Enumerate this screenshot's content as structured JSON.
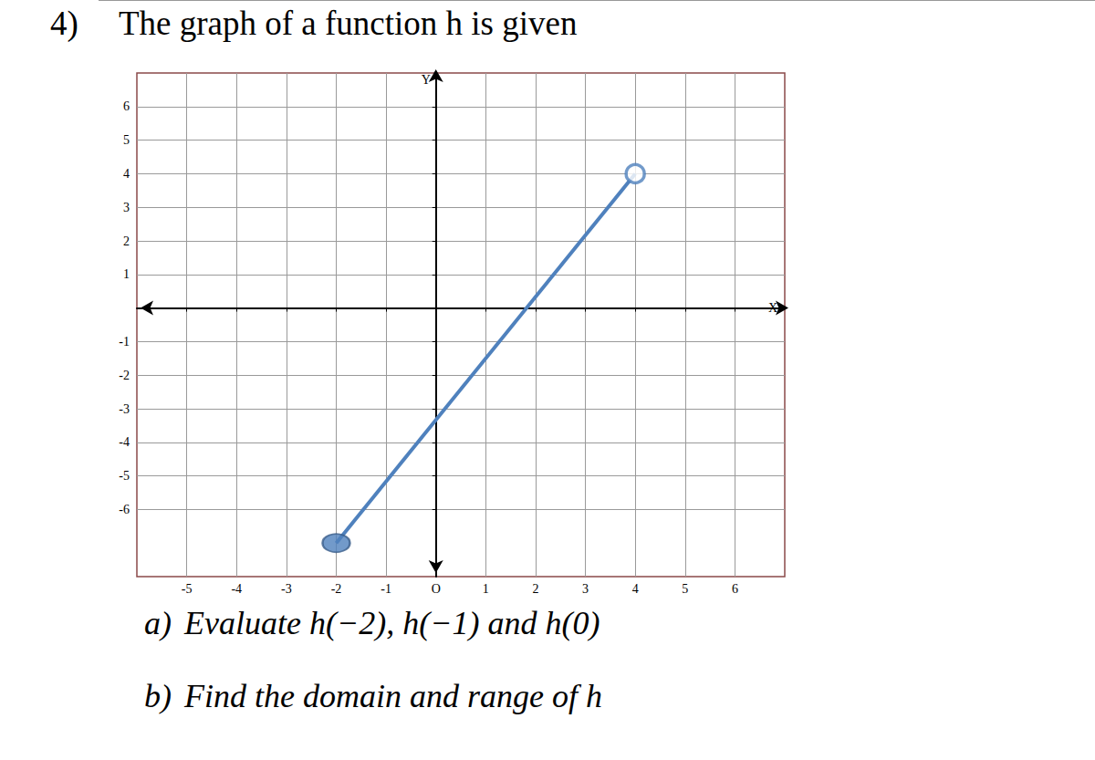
{
  "header": {
    "number": "4)",
    "text": "The graph of a function h is given"
  },
  "chart_data": {
    "type": "line",
    "x_label": "X",
    "y_label": "Y",
    "xlim": [
      -6,
      7
    ],
    "ylim": [
      -8,
      7
    ],
    "xticks": [
      -5,
      -4,
      -3,
      -2,
      -1,
      {
        "value": 0,
        "label": "O"
      },
      1,
      2,
      3,
      4,
      5,
      6
    ],
    "yticks": [
      -6,
      -5,
      -4,
      -3,
      -2,
      -1,
      1,
      2,
      3,
      4,
      5,
      6
    ],
    "grid": true,
    "series": [
      {
        "type": "line",
        "color": "#4f81bd",
        "x": [
          -2,
          4
        ],
        "values": [
          -7,
          4
        ]
      },
      {
        "type": "scatter",
        "marker": "filled",
        "color": "#4f81bd",
        "x": [
          -2
        ],
        "values": [
          -7
        ]
      },
      {
        "type": "scatter",
        "marker": "open",
        "color": "#4f81bd",
        "x": [
          4
        ],
        "values": [
          4
        ]
      }
    ]
  },
  "questions": [
    {
      "label": "a)",
      "text": "Evaluate h(−2), h(−1) and h(0)"
    },
    {
      "label": "b)",
      "text": "Find the domain and range of h"
    }
  ]
}
